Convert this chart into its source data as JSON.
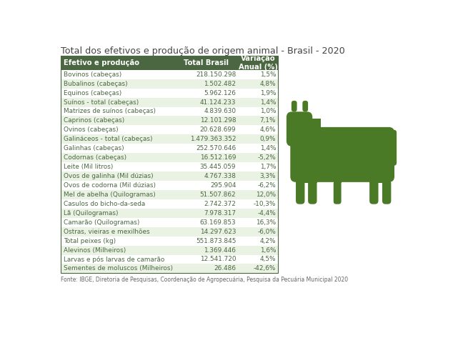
{
  "title": "Total dos efetivos e produção de origem animal - Brasil - 2020",
  "footer": "Fonte: IBGE, Diretoria de Pesquisas, Coordenação de Agropecuária, Pesquisa da Pecuária Municipal 2020",
  "header": [
    "Efetivo e produção",
    "Total Brasil",
    "Variação\nAnual (%)"
  ],
  "rows": [
    [
      "Bovinos (cabeças)",
      "218.150.298",
      "1,5%"
    ],
    [
      "Bubalinos (cabeças)",
      "1.502.482",
      "4,8%"
    ],
    [
      "Equinos (cabeças)",
      "5.962.126",
      "1,9%"
    ],
    [
      "Suínos - total (cabeças)",
      "41.124.233",
      "1,4%"
    ],
    [
      "Matrizes de suínos (cabeças)",
      "4.839.630",
      "1,0%"
    ],
    [
      "Caprinos (cabeças)",
      "12.101.298",
      "7,1%"
    ],
    [
      "Ovinos (cabeças)",
      "20.628.699",
      "4,6%"
    ],
    [
      "Galináceos - total (cabeças)",
      "1.479.363.352",
      "0,9%"
    ],
    [
      "Galinhas (cabeças)",
      "252.570.646",
      "1,4%"
    ],
    [
      "Codornas (cabeças)",
      "16.512.169",
      "-5,2%"
    ],
    [
      "Leite (Mil litros)",
      "35.445.059",
      "1,7%"
    ],
    [
      "Ovos de galinha (Mil dúzias)",
      "4.767.338",
      "3,3%"
    ],
    [
      "Ovos de codorna (Mil dúzias)",
      "295.904",
      "-6,2%"
    ],
    [
      "Mel de abelha (Quilogramas)",
      "51.507.862",
      "12,0%"
    ],
    [
      "Casulos do bicho-da-seda",
      "2.742.372",
      "-10,3%"
    ],
    [
      "Lã (Quilogramas)",
      "7.978.317",
      "-4,4%"
    ],
    [
      "Camarão (Quilogramas)",
      "63.169.853",
      "16,3%"
    ],
    [
      "Ostras, vieiras e mexilhões",
      "14.297.623",
      "-6,0%"
    ],
    [
      "Total peixes (kg)",
      "551.873.845",
      "4,2%"
    ],
    [
      "Alevinos (Milheiros)",
      "1.369.446",
      "1,6%"
    ],
    [
      "Larvas e pós larvas de camarão",
      "12.541.720",
      "4,5%"
    ],
    [
      "Sementes de moluscos (Milheiros)",
      "26.486",
      "-42,6%"
    ]
  ],
  "shaded_rows": [
    1,
    3,
    5,
    7,
    9,
    11,
    13,
    15,
    17,
    19,
    21
  ],
  "header_bg": "#4a6741",
  "header_fg": "#ffffff",
  "shaded_bg": "#eaf2e3",
  "normal_bg": "#ffffff",
  "border_color": "#4a6741",
  "text_color": "#4a6741",
  "cow_color": "#4a7a25",
  "title_color": "#444444",
  "footer_color": "#666666"
}
